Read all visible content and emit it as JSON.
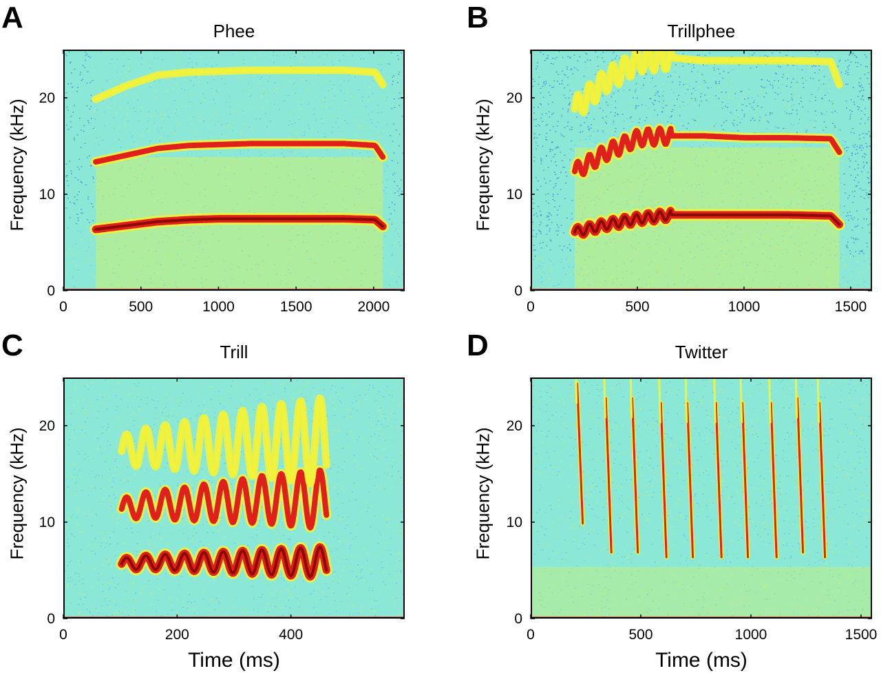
{
  "figure": {
    "panels": [
      {
        "letter": "A",
        "title": "Phee",
        "ylabel": "Frequency (kHz)",
        "xlabel": "",
        "xticks": [
          "0",
          "500",
          "1000",
          "1500",
          "2000"
        ],
        "yticks": [
          "0",
          "10",
          "20"
        ]
      },
      {
        "letter": "B",
        "title": "Trillphee",
        "ylabel": "Frequency (kHz)",
        "xlabel": "",
        "xticks": [
          "0",
          "500",
          "1000",
          "1500"
        ],
        "yticks": [
          "0",
          "10",
          "20"
        ]
      },
      {
        "letter": "C",
        "title": "Trill",
        "ylabel": "Frequency (kHz)",
        "xlabel": "Time (ms)",
        "xticks": [
          "0",
          "200",
          "400"
        ],
        "yticks": [
          "0",
          "10",
          "20"
        ]
      },
      {
        "letter": "D",
        "title": "Twitter",
        "ylabel": "Frequency (kHz)",
        "xlabel": "Time (ms)",
        "xticks": [
          "0",
          "500",
          "1000",
          "1500"
        ],
        "yticks": [
          "0",
          "10",
          "20"
        ]
      }
    ]
  },
  "colors": {
    "background_cyan": "#8be8d6",
    "noise_blue": "#3d7fd6",
    "energy_yellow": "#f2f23a",
    "energy_red": "#e0201a",
    "energy_dark_red": "#8a0a06"
  },
  "chart_data": [
    {
      "type": "heatmap",
      "title": "Phee",
      "xlabel": "",
      "ylabel": "Frequency (kHz)",
      "xlim": [
        0,
        2200
      ],
      "ylim": [
        0,
        25
      ],
      "xticks": [
        0,
        500,
        1000,
        1500,
        2000
      ],
      "yticks": [
        0,
        10,
        20
      ],
      "series": [
        {
          "x": [
            200,
            400,
            600,
            800,
            1000,
            1200,
            1400,
            1600,
            1800,
            2000,
            2050
          ],
          "y": [
            6.5,
            6.9,
            7.3,
            7.5,
            7.6,
            7.6,
            7.6,
            7.6,
            7.6,
            7.5,
            6.8
          ]
        },
        {
          "x": [
            200,
            400,
            600,
            800,
            1000,
            1200,
            1400,
            1600,
            1800,
            2000,
            2050
          ],
          "y": [
            13.5,
            14.2,
            14.9,
            15.2,
            15.3,
            15.4,
            15.4,
            15.4,
            15.4,
            15.2,
            14.0
          ]
        },
        {
          "x": [
            200,
            400,
            600,
            800,
            1000,
            1200,
            1400,
            1600,
            1800,
            2000,
            2050
          ],
          "y": [
            20.0,
            21.4,
            22.5,
            22.8,
            22.9,
            23.0,
            23.0,
            23.0,
            23.0,
            22.8,
            21.5
          ]
        }
      ]
    },
    {
      "type": "heatmap",
      "title": "Trillphee",
      "xlabel": "",
      "ylabel": "Frequency (kHz)",
      "xlim": [
        0,
        1600
      ],
      "ylim": [
        0,
        25
      ],
      "xticks": [
        0,
        500,
        1000,
        1500
      ],
      "yticks": [
        0,
        10,
        20
      ],
      "series": [
        {
          "x": [
            200,
            350,
            500,
            650,
            800,
            1000,
            1200,
            1400,
            1440
          ],
          "y": [
            6.2,
            7.0,
            7.6,
            8.0,
            8.0,
            8.0,
            8.0,
            7.9,
            7.0
          ]
        },
        {
          "x": [
            200,
            350,
            500,
            650,
            800,
            1000,
            1200,
            1400,
            1440
          ],
          "y": [
            12.5,
            14.5,
            16.0,
            16.2,
            16.2,
            16.0,
            16.0,
            15.9,
            14.5
          ]
        },
        {
          "x": [
            200,
            350,
            500,
            650,
            800,
            1000,
            1200,
            1400,
            1440
          ],
          "y": [
            19.0,
            22.0,
            24.0,
            24.3,
            24.0,
            24.0,
            24.0,
            23.9,
            21.5
          ]
        }
      ]
    },
    {
      "type": "heatmap",
      "title": "Trill",
      "xlabel": "Time (ms)",
      "ylabel": "Frequency (kHz)",
      "xlim": [
        0,
        600
      ],
      "ylim": [
        0,
        25
      ],
      "xticks": [
        0,
        200,
        400
      ],
      "yticks": [
        0,
        10,
        20
      ],
      "series": [
        {
          "x": [
            100,
            150,
            200,
            250,
            300,
            350,
            400,
            460
          ],
          "y": [
            5.8,
            6.0,
            6.0,
            6.0,
            6.0,
            6.0,
            6.0,
            6.0
          ]
        },
        {
          "x": [
            100,
            150,
            200,
            250,
            300,
            350,
            400,
            460
          ],
          "y": [
            11.5,
            12.0,
            12.0,
            12.2,
            12.3,
            12.5,
            12.5,
            12.5
          ]
        },
        {
          "x": [
            100,
            150,
            200,
            250,
            300,
            350,
            400,
            460
          ],
          "y": [
            17.5,
            18.0,
            18.0,
            18.2,
            18.3,
            18.5,
            18.5,
            18.5
          ]
        }
      ]
    },
    {
      "type": "heatmap",
      "title": "Twitter",
      "xlabel": "Time (ms)",
      "ylabel": "Frequency (kHz)",
      "xlim": [
        0,
        1550
      ],
      "ylim": [
        0,
        25
      ],
      "xticks": [
        0,
        500,
        1000,
        1500
      ],
      "yticks": [
        0,
        10,
        20
      ],
      "series": [
        {
          "x": [
            220,
            350,
            470,
            600,
            720,
            850,
            970,
            1100,
            1220,
            1320
          ],
          "y": [
            10,
            7,
            7,
            6.5,
            6.5,
            6.5,
            6.5,
            6.5,
            7,
            6.5
          ]
        }
      ]
    }
  ]
}
